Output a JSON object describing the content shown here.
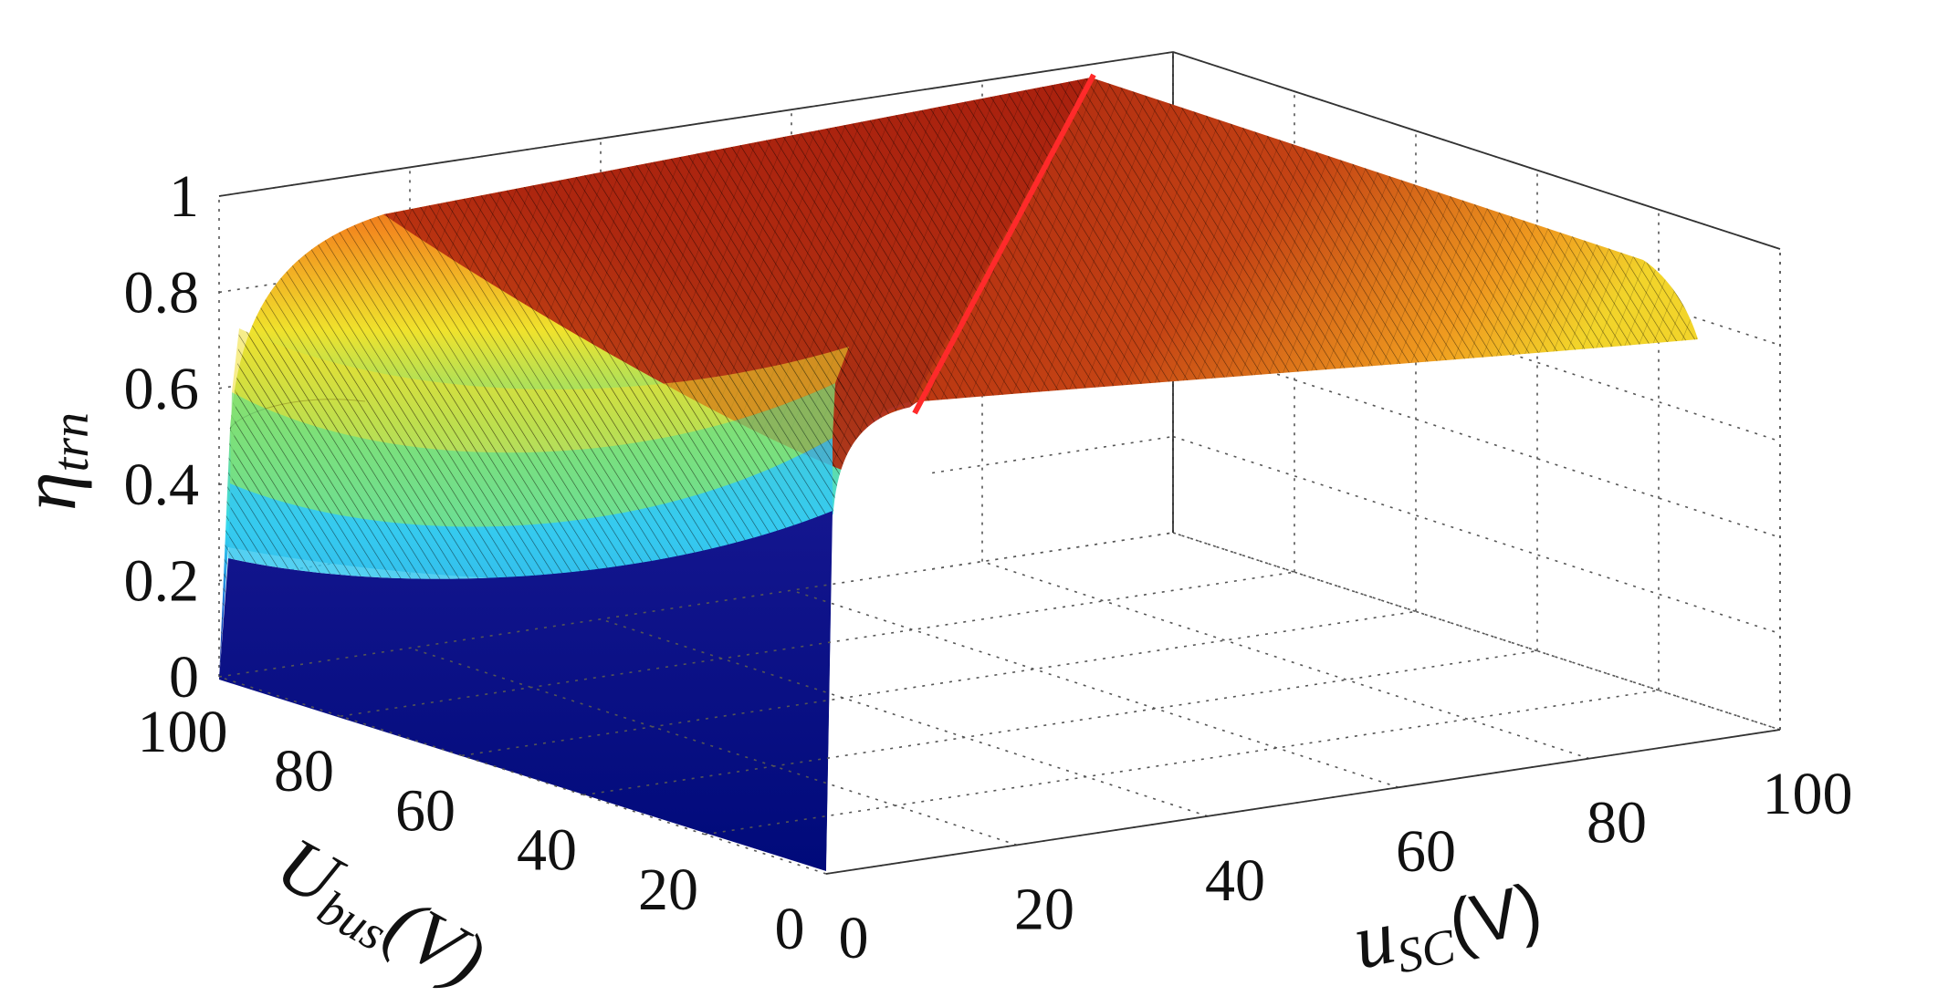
{
  "chart_data": {
    "type": "surface",
    "title": "",
    "zlabel": "η",
    "zlabel_sub": "trn",
    "xlabel": "U",
    "xlabel_sub": "bus",
    "xlabel_unit": "(V)",
    "ylabel": "u",
    "ylabel_sub": "SC",
    "ylabel_unit": "(V)",
    "x_axis": {
      "name": "U_bus",
      "range": [
        0,
        100
      ],
      "ticks": [
        0,
        20,
        40,
        60,
        80,
        100
      ]
    },
    "y_axis": {
      "name": "u_SC",
      "range": [
        0,
        100
      ],
      "ticks": [
        0,
        20,
        40,
        60,
        80,
        100
      ]
    },
    "z_axis": {
      "name": "eta_trn",
      "range": [
        0,
        1
      ],
      "ticks": [
        0,
        0.2,
        0.4,
        0.6,
        0.8,
        1
      ]
    },
    "tick_labels": {
      "z": [
        "0",
        "0.2",
        "0.4",
        "0.6",
        "0.8",
        "1"
      ],
      "x": [
        "0",
        "20",
        "40",
        "60",
        "80",
        "100"
      ],
      "y": [
        "0",
        "20",
        "40",
        "60",
        "80",
        "100"
      ]
    },
    "surface": {
      "description_of_values": "eta ~ 1 along ridge u_SC = U_bus, falling toward edges",
      "ridge_points": [
        [
          8,
          8,
          0.6
        ],
        [
          30,
          30,
          0.8
        ],
        [
          60,
          60,
          0.92
        ],
        [
          100,
          100,
          1.0
        ]
      ],
      "corner_values": {
        "U100_u0": 0.25,
        "U0_u100": 0.7,
        "U100_u100": 1.0,
        "U0_u0": 0.0
      }
    },
    "highlight_line": {
      "name": "",
      "color": "#ff2a2a"
    },
    "colormap": "jet",
    "grid": true,
    "colors": {
      "low": "#00007f",
      "mid": "#2fbfff",
      "high": "#a31f10",
      "line": "#ff2a2a"
    }
  }
}
